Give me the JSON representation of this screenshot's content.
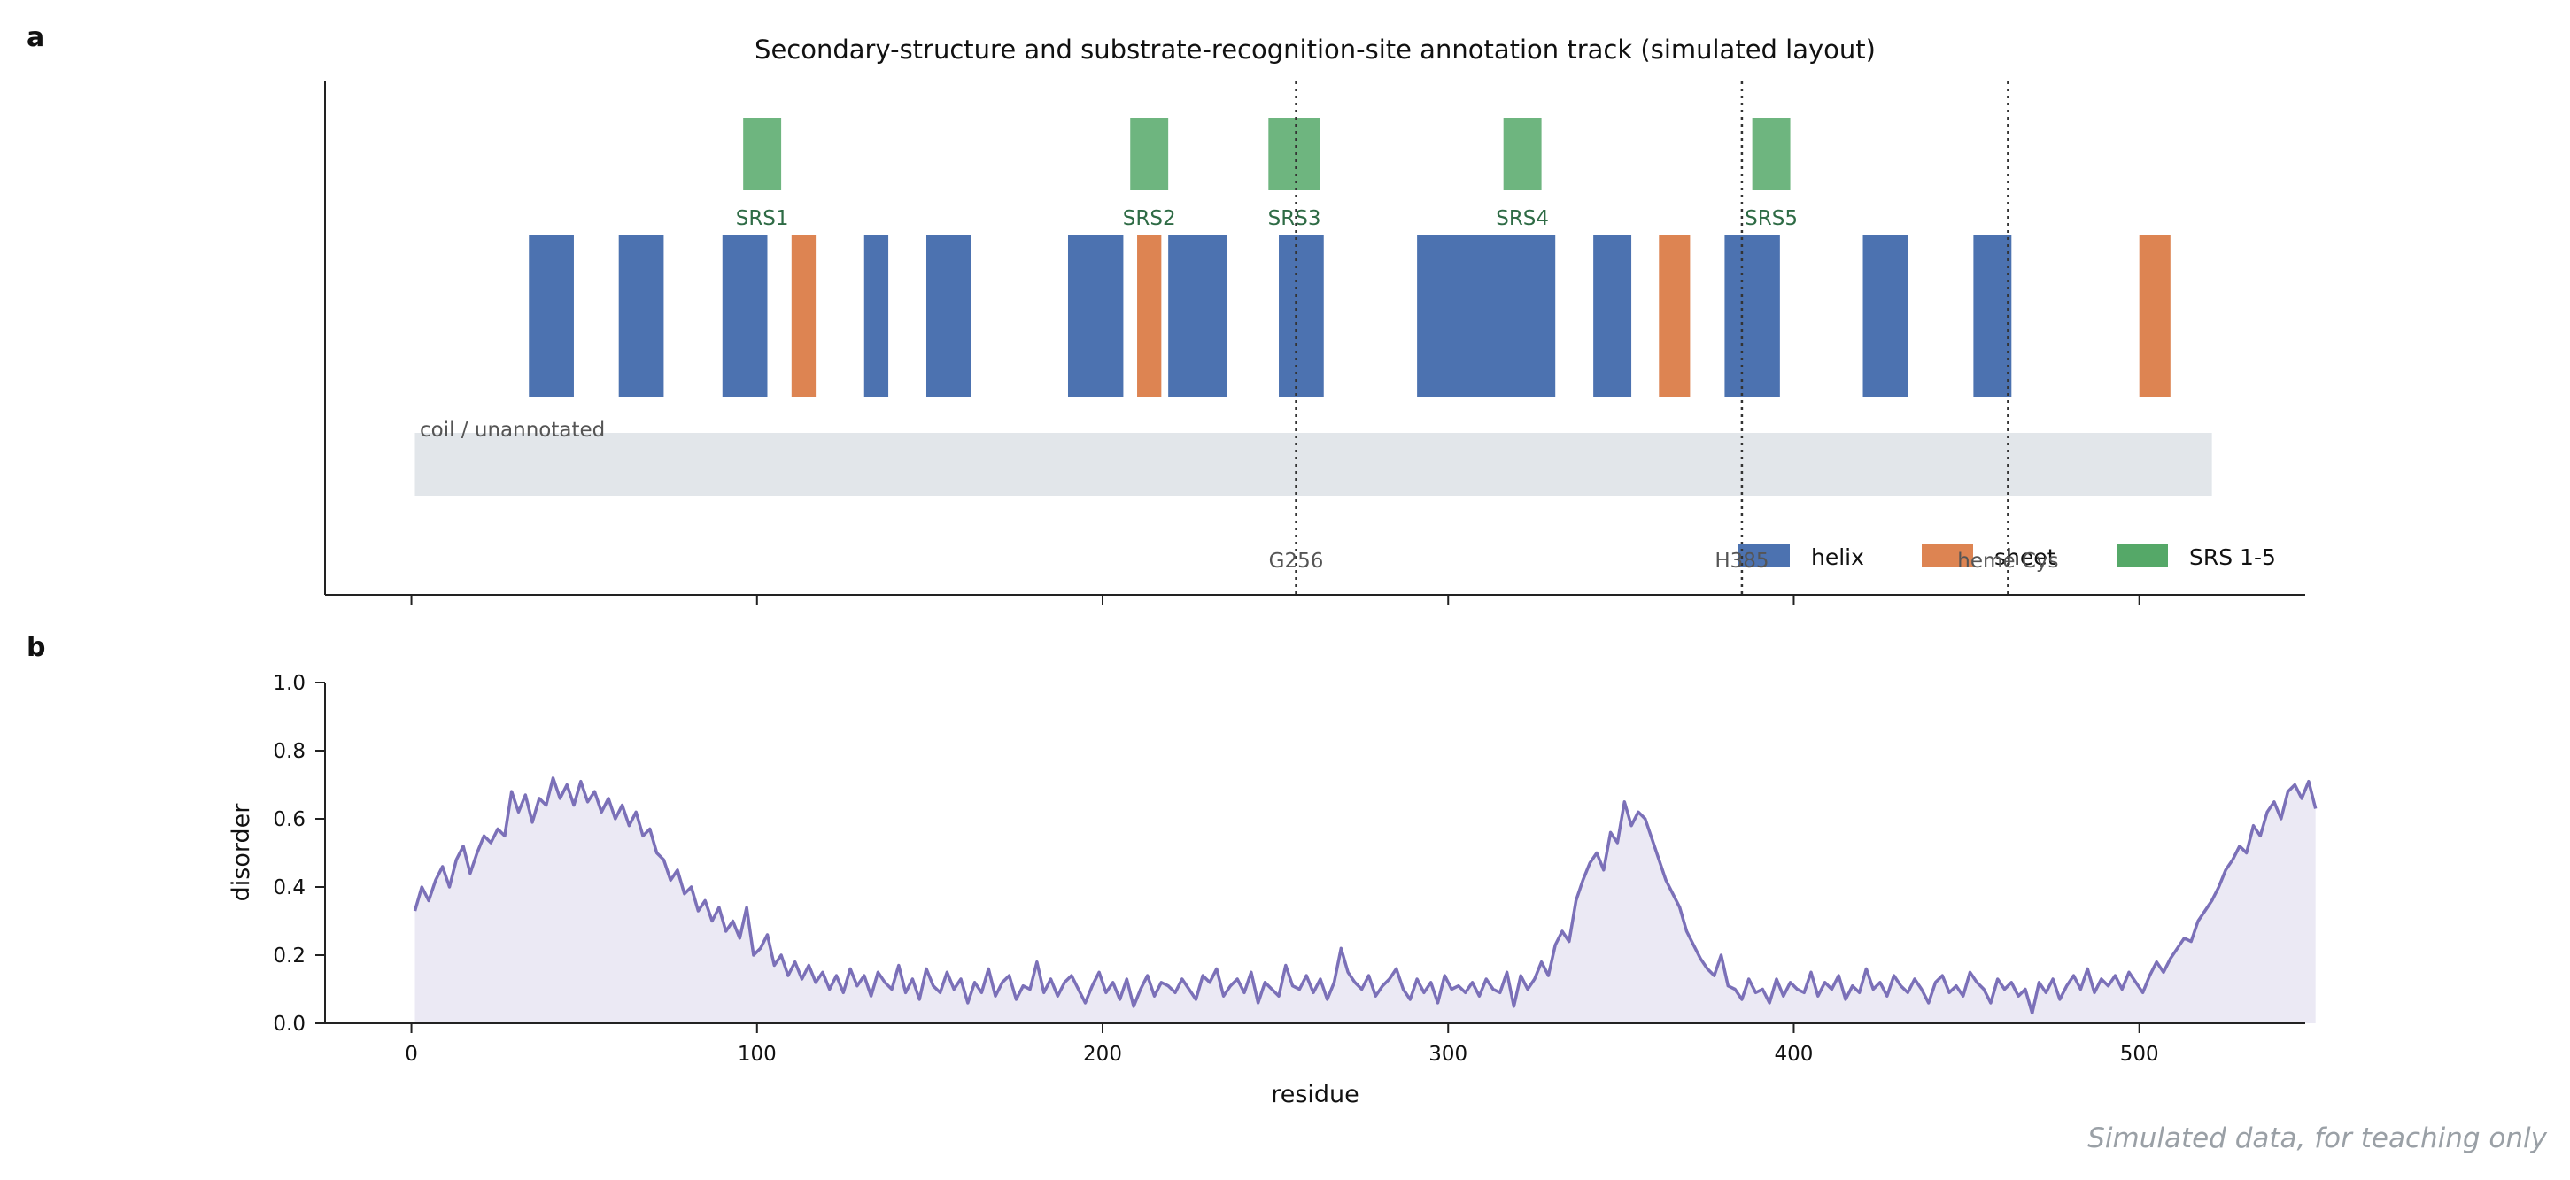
{
  "panels": {
    "a": "a",
    "b": "b"
  },
  "watermark": "Simulated data, for teaching only",
  "colors": {
    "helix": "#4c72b0",
    "sheet": "#dd8452",
    "srs": "#55a868",
    "coil": "#e2e6ea",
    "disorder_line": "#7b70b8",
    "disorder_fill": "#ebe9f4",
    "srs_label": "#2e6b45",
    "marker_text": "#555555"
  },
  "chart_data": [
    {
      "type": "track",
      "panel": "a",
      "title": "Secondary-structure and substrate-recognition-site annotation track (simulated layout)",
      "xlim": [
        -25,
        548
      ],
      "x_ticks": [
        0,
        100,
        200,
        300,
        400,
        500
      ],
      "coil": {
        "label": "coil / unannotated",
        "start": 1,
        "end": 521
      },
      "helix": [
        [
          34,
          47
        ],
        [
          60,
          73
        ],
        [
          90,
          103
        ],
        [
          131,
          138
        ],
        [
          149,
          162
        ],
        [
          190,
          206
        ],
        [
          219,
          236
        ],
        [
          251,
          264
        ],
        [
          291,
          331
        ],
        [
          342,
          353
        ],
        [
          380,
          396
        ],
        [
          420,
          433
        ],
        [
          452,
          463
        ]
      ],
      "sheet": [
        [
          110,
          117
        ],
        [
          210,
          217
        ],
        [
          361,
          370
        ],
        [
          500,
          509
        ]
      ],
      "srs": [
        {
          "label": "SRS1",
          "start": 96,
          "end": 107
        },
        {
          "label": "SRS2",
          "start": 208,
          "end": 219
        },
        {
          "label": "SRS3",
          "start": 248,
          "end": 263
        },
        {
          "label": "SRS4",
          "start": 316,
          "end": 327
        },
        {
          "label": "SRS5",
          "start": 388,
          "end": 399
        }
      ],
      "markers": [
        {
          "label": "G256",
          "position": 256
        },
        {
          "label": "H385",
          "position": 385
        },
        {
          "label": "heme Cys",
          "position": 462
        }
      ],
      "legend": {
        "placement": "lower-right",
        "entries": [
          {
            "key": "helix",
            "label": "helix"
          },
          {
            "key": "sheet",
            "label": "sheet"
          },
          {
            "key": "srs",
            "label": "SRS 1-5"
          }
        ]
      }
    },
    {
      "type": "line",
      "panel": "b",
      "xlabel": "residue",
      "ylabel": "disorder",
      "xlim": [
        -25,
        548
      ],
      "ylim": [
        0.0,
        1.0
      ],
      "x_ticks": [
        0,
        100,
        200,
        300,
        400,
        500
      ],
      "y_ticks": [
        "0.0",
        "0.2",
        "0.4",
        "0.6",
        "0.8",
        "1.0"
      ],
      "x_start": 1,
      "x_step": 2,
      "values": [
        0.33,
        0.4,
        0.36,
        0.42,
        0.46,
        0.4,
        0.48,
        0.52,
        0.44,
        0.5,
        0.55,
        0.53,
        0.57,
        0.55,
        0.68,
        0.62,
        0.67,
        0.59,
        0.66,
        0.64,
        0.72,
        0.66,
        0.7,
        0.64,
        0.71,
        0.65,
        0.68,
        0.62,
        0.66,
        0.6,
        0.64,
        0.58,
        0.62,
        0.55,
        0.57,
        0.5,
        0.48,
        0.42,
        0.45,
        0.38,
        0.4,
        0.33,
        0.36,
        0.3,
        0.34,
        0.27,
        0.3,
        0.25,
        0.34,
        0.2,
        0.22,
        0.26,
        0.17,
        0.2,
        0.14,
        0.18,
        0.13,
        0.17,
        0.12,
        0.15,
        0.1,
        0.14,
        0.09,
        0.16,
        0.11,
        0.14,
        0.08,
        0.15,
        0.12,
        0.1,
        0.17,
        0.09,
        0.13,
        0.07,
        0.16,
        0.11,
        0.09,
        0.15,
        0.1,
        0.13,
        0.06,
        0.12,
        0.09,
        0.16,
        0.08,
        0.12,
        0.14,
        0.07,
        0.11,
        0.1,
        0.18,
        0.09,
        0.13,
        0.08,
        0.12,
        0.14,
        0.1,
        0.06,
        0.11,
        0.15,
        0.09,
        0.12,
        0.07,
        0.13,
        0.05,
        0.1,
        0.14,
        0.08,
        0.12,
        0.11,
        0.09,
        0.13,
        0.1,
        0.07,
        0.14,
        0.12,
        0.16,
        0.08,
        0.11,
        0.13,
        0.09,
        0.15,
        0.06,
        0.12,
        0.1,
        0.08,
        0.17,
        0.11,
        0.1,
        0.14,
        0.09,
        0.13,
        0.07,
        0.12,
        0.22,
        0.15,
        0.12,
        0.1,
        0.14,
        0.08,
        0.11,
        0.13,
        0.16,
        0.1,
        0.07,
        0.13,
        0.09,
        0.12,
        0.06,
        0.14,
        0.1,
        0.11,
        0.09,
        0.12,
        0.08,
        0.13,
        0.1,
        0.09,
        0.15,
        0.05,
        0.14,
        0.1,
        0.13,
        0.18,
        0.14,
        0.23,
        0.27,
        0.24,
        0.36,
        0.42,
        0.47,
        0.5,
        0.45,
        0.56,
        0.53,
        0.65,
        0.58,
        0.62,
        0.6,
        0.54,
        0.48,
        0.42,
        0.38,
        0.34,
        0.27,
        0.23,
        0.19,
        0.16,
        0.14,
        0.2,
        0.11,
        0.1,
        0.07,
        0.13,
        0.09,
        0.1,
        0.06,
        0.13,
        0.08,
        0.12,
        0.1,
        0.09,
        0.15,
        0.08,
        0.12,
        0.1,
        0.14,
        0.07,
        0.11,
        0.09,
        0.16,
        0.1,
        0.12,
        0.08,
        0.14,
        0.11,
        0.09,
        0.13,
        0.1,
        0.06,
        0.12,
        0.14,
        0.09,
        0.11,
        0.08,
        0.15,
        0.12,
        0.1,
        0.06,
        0.13,
        0.1,
        0.12,
        0.08,
        0.1,
        0.03,
        0.12,
        0.09,
        0.13,
        0.07,
        0.11,
        0.14,
        0.1,
        0.16,
        0.09,
        0.13,
        0.11,
        0.14,
        0.1,
        0.15,
        0.12,
        0.09,
        0.14,
        0.18,
        0.15,
        0.19,
        0.22,
        0.25,
        0.24,
        0.3,
        0.33,
        0.36,
        0.4,
        0.45,
        0.48,
        0.52,
        0.5,
        0.58,
        0.55,
        0.62,
        0.65,
        0.6,
        0.68,
        0.7,
        0.66,
        0.71,
        0.63
      ]
    }
  ]
}
